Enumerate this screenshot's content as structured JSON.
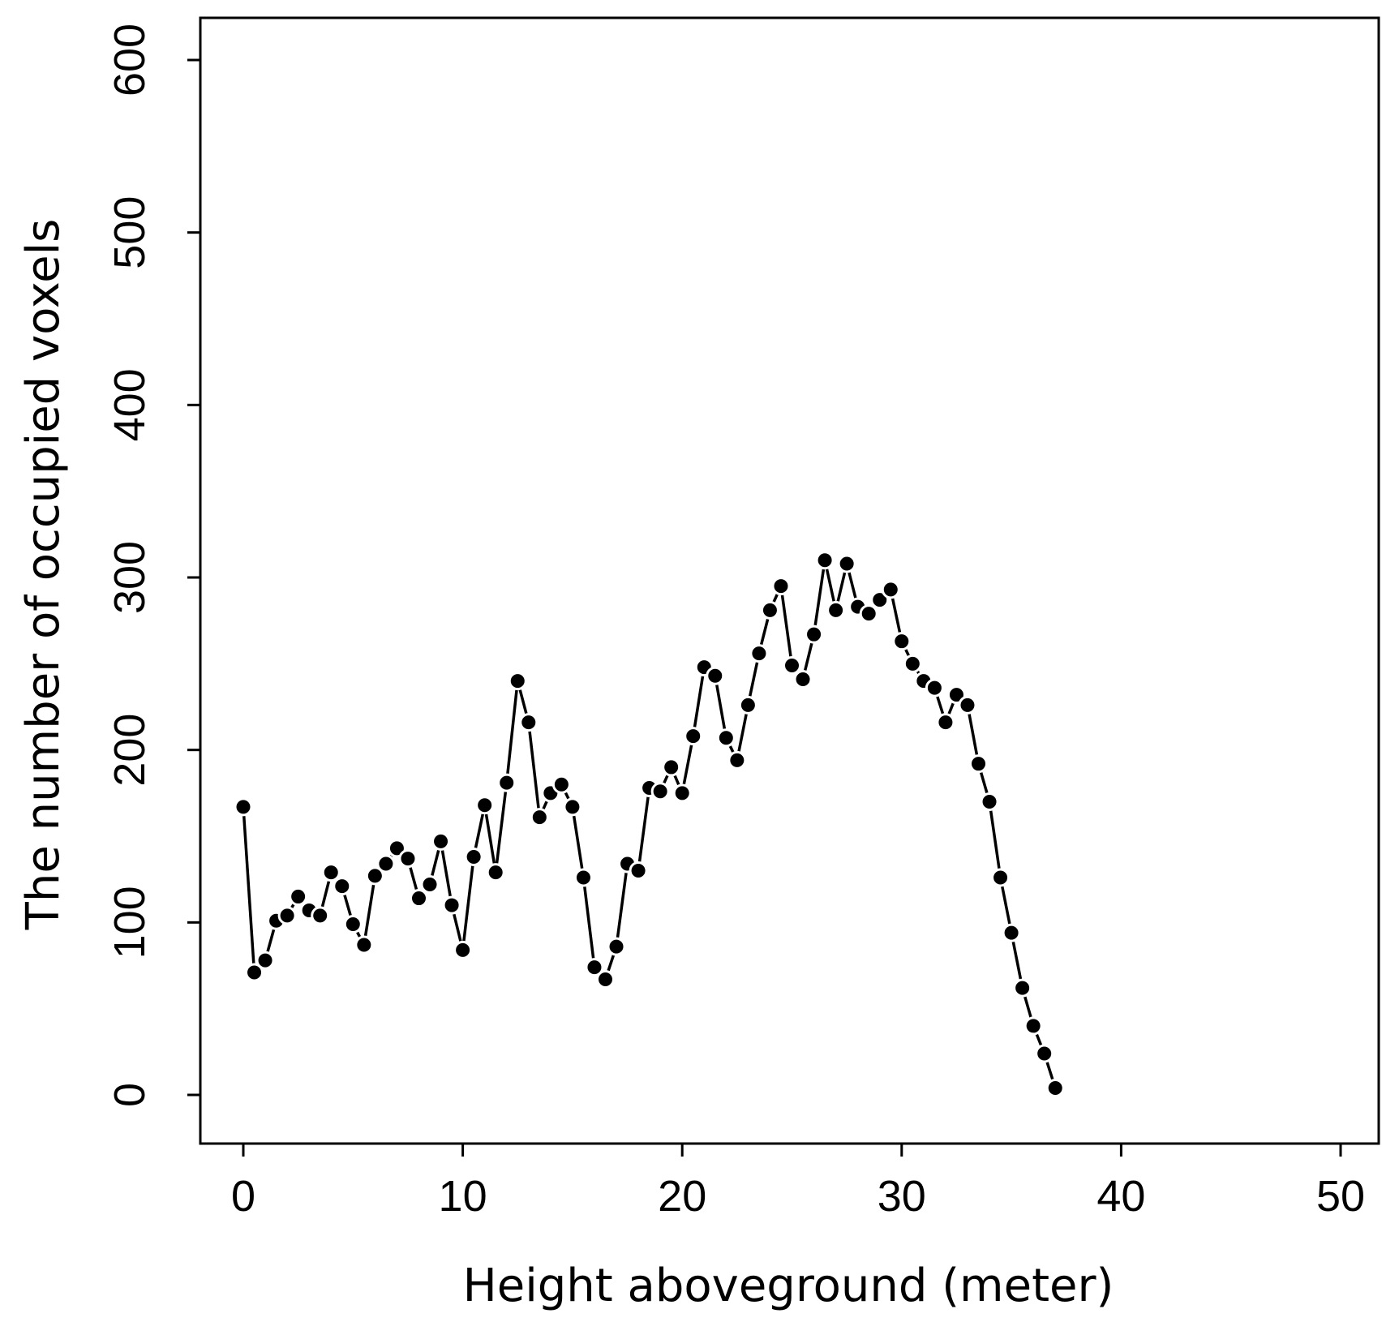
{
  "chart_data": {
    "type": "line",
    "title": "",
    "xlabel": "Height aboveground (meter)",
    "ylabel": "The number of occupied voxels",
    "xlim": [
      0,
      50
    ],
    "ylim": [
      0,
      600
    ],
    "xticks": [
      0,
      10,
      20,
      30,
      40,
      50
    ],
    "yticks": [
      0,
      100,
      200,
      300,
      400,
      500,
      600
    ],
    "xtick_labels": [
      "0",
      "10",
      "20",
      "30",
      "40",
      "50"
    ],
    "ytick_labels": [
      "0",
      "100",
      "200",
      "300",
      "400",
      "500",
      "600"
    ],
    "grid": false,
    "marker": "filled-circle",
    "colors": {
      "line": "#000000",
      "marker": "#000000",
      "axis": "#000000"
    },
    "series": [
      {
        "name": "occupied voxels",
        "x": [
          0,
          0.5,
          1,
          1.5,
          2,
          2.5,
          3,
          3.5,
          4,
          4.5,
          5,
          5.5,
          6,
          6.5,
          7,
          7.5,
          8,
          8.5,
          9,
          9.5,
          10,
          10.5,
          11,
          11.5,
          12,
          12.5,
          13,
          13.5,
          14,
          14.5,
          15,
          15.5,
          16,
          16.5,
          17,
          17.5,
          18,
          18.5,
          19,
          19.5,
          20,
          20.5,
          21,
          21.5,
          22,
          22.5,
          23,
          23.5,
          24,
          24.5,
          25,
          25.5,
          26,
          26.5,
          27,
          27.5,
          28,
          28.5,
          29,
          29.5,
          30,
          30.5,
          31,
          31.5,
          32,
          32.5,
          33,
          33.5,
          34,
          34.5,
          35,
          35.5,
          36,
          36.5,
          37
        ],
        "values": [
          167,
          71,
          78,
          101,
          104,
          115,
          107,
          104,
          129,
          121,
          99,
          87,
          127,
          134,
          143,
          137,
          114,
          122,
          147,
          110,
          84,
          138,
          168,
          129,
          181,
          240,
          216,
          161,
          175,
          180,
          167,
          126,
          74,
          67,
          86,
          134,
          130,
          178,
          176,
          190,
          175,
          208,
          248,
          243,
          207,
          194,
          226,
          256,
          281,
          295,
          249,
          241,
          267,
          310,
          281,
          308,
          283,
          279,
          287,
          293,
          263,
          250,
          240,
          236,
          216,
          232,
          226,
          192,
          170,
          126,
          94,
          62,
          40,
          24,
          4
        ]
      }
    ]
  }
}
